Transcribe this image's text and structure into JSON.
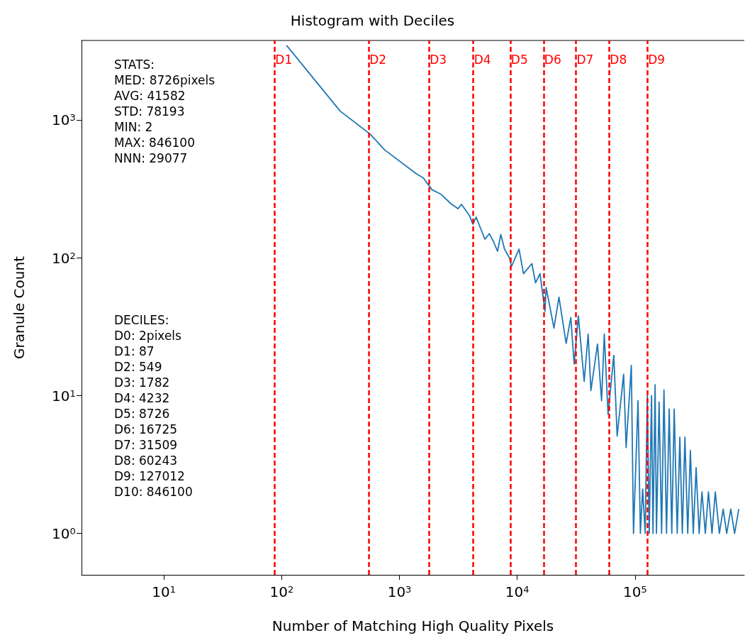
{
  "chart_data": {
    "type": "line",
    "title": "Histogram with Deciles",
    "xlabel": "Number of Matching High Quality Pixels",
    "ylabel": "Granule Count",
    "log": "xy",
    "grid": false,
    "marker": "none",
    "line_style": "solid",
    "xlim": [
      2,
      846100
    ],
    "ylim": [
      0.5,
      3800
    ],
    "xticks": [
      {
        "value": 10,
        "label": "10$^{1}$"
      },
      {
        "value": 100,
        "label": "10$^{2}$"
      },
      {
        "value": 1000,
        "label": "10$^{3}$"
      },
      {
        "value": 10000,
        "label": "10$^{4}$"
      },
      {
        "value": 100000,
        "label": "10$^{5}$"
      }
    ],
    "yticks": [
      {
        "value": 1,
        "label": "10$^{0}$"
      },
      {
        "value": 10,
        "label": "10$^{1}$"
      },
      {
        "value": 100,
        "label": "10$^{2}$"
      },
      {
        "value": 1000,
        "label": "10$^{3}$"
      }
    ],
    "series": [
      {
        "color": "#1f77b4",
        "x": [
          110,
          314,
          567,
          748,
          1375,
          1600,
          1884,
          2254,
          2735,
          3140,
          3360,
          3920,
          4200,
          4480,
          5310,
          5800,
          6300,
          6800,
          7250,
          7800,
          8600,
          8950,
          10350,
          11300,
          13300,
          14300,
          15600,
          17200,
          17600,
          20500,
          22600,
          26000,
          28500,
          30400,
          33000,
          37000,
          40000,
          42200,
          48000,
          52000,
          54800,
          59000,
          66000,
          70500,
          80000,
          84000,
          93000,
          97000,
          106000,
          111000,
          116000,
          122000,
          127000,
          132000,
          138000,
          142000,
          148000,
          152000,
          160000,
          168000,
          176000,
          185000,
          195000,
          205000,
          215000,
          228000,
          240000,
          252000,
          265000,
          280000,
          295000,
          312000,
          330000,
          350000,
          370000,
          395000,
          420000,
          450000,
          480000,
          520000,
          560000,
          600000,
          650000,
          700000,
          760000
        ],
        "values": [
          3500,
          1165,
          790,
          610,
          412,
          380,
          314,
          290,
          248,
          228,
          245,
          204,
          176,
          198,
          137,
          150,
          131,
          112,
          148,
          116,
          100,
          87,
          116,
          77,
          91,
          66,
          77,
          41,
          61,
          31,
          52,
          24,
          37,
          17,
          38,
          12.7,
          28,
          10.9,
          23.7,
          9.2,
          28,
          7.3,
          19.6,
          5.1,
          14.3,
          4.2,
          16.6,
          1,
          9.2,
          1,
          2.1,
          1,
          10,
          1,
          10,
          1,
          12,
          1,
          9,
          1,
          11,
          1,
          8,
          1,
          8,
          1,
          5,
          1,
          5,
          1,
          4,
          1,
          3,
          1,
          2,
          1,
          2,
          1,
          2,
          1,
          1.5,
          1,
          1.5,
          1,
          1.5
        ]
      }
    ],
    "ref_lines": [
      {
        "axis": "x",
        "value": 87,
        "label": "D1",
        "color": "#ff0000",
        "line_style": "dashed"
      },
      {
        "axis": "x",
        "value": 549,
        "label": "D2",
        "color": "#ff0000",
        "line_style": "dashed"
      },
      {
        "axis": "x",
        "value": 1782,
        "label": "D3",
        "color": "#ff0000",
        "line_style": "dashed"
      },
      {
        "axis": "x",
        "value": 4232,
        "label": "D4",
        "color": "#ff0000",
        "line_style": "dashed"
      },
      {
        "axis": "x",
        "value": 8726,
        "label": "D5",
        "color": "#ff0000",
        "line_style": "dashed"
      },
      {
        "axis": "x",
        "value": 16725,
        "label": "D6",
        "color": "#ff0000",
        "line_style": "dashed"
      },
      {
        "axis": "x",
        "value": 31509,
        "label": "D7",
        "color": "#ff0000",
        "line_style": "dashed"
      },
      {
        "axis": "x",
        "value": 60243,
        "label": "D8",
        "color": "#ff0000",
        "line_style": "dashed"
      },
      {
        "axis": "x",
        "value": 127012,
        "label": "D9",
        "color": "#ff0000",
        "line_style": "dashed"
      }
    ],
    "annotations": [
      "STATS:\nMED: 8726pixels\nAVG: 41582\nSTD: 78193\nMIN: 2\nMAX: 846100\nNNN: 29077",
      "DECILES:\nD0: 2pixels\nD1: 87\nD2: 549\nD3: 1782\nD4: 4232\nD5: 8726\nD6: 16725\nD7: 31509\nD8: 60243\nD9: 127012\nD10: 846100"
    ]
  }
}
